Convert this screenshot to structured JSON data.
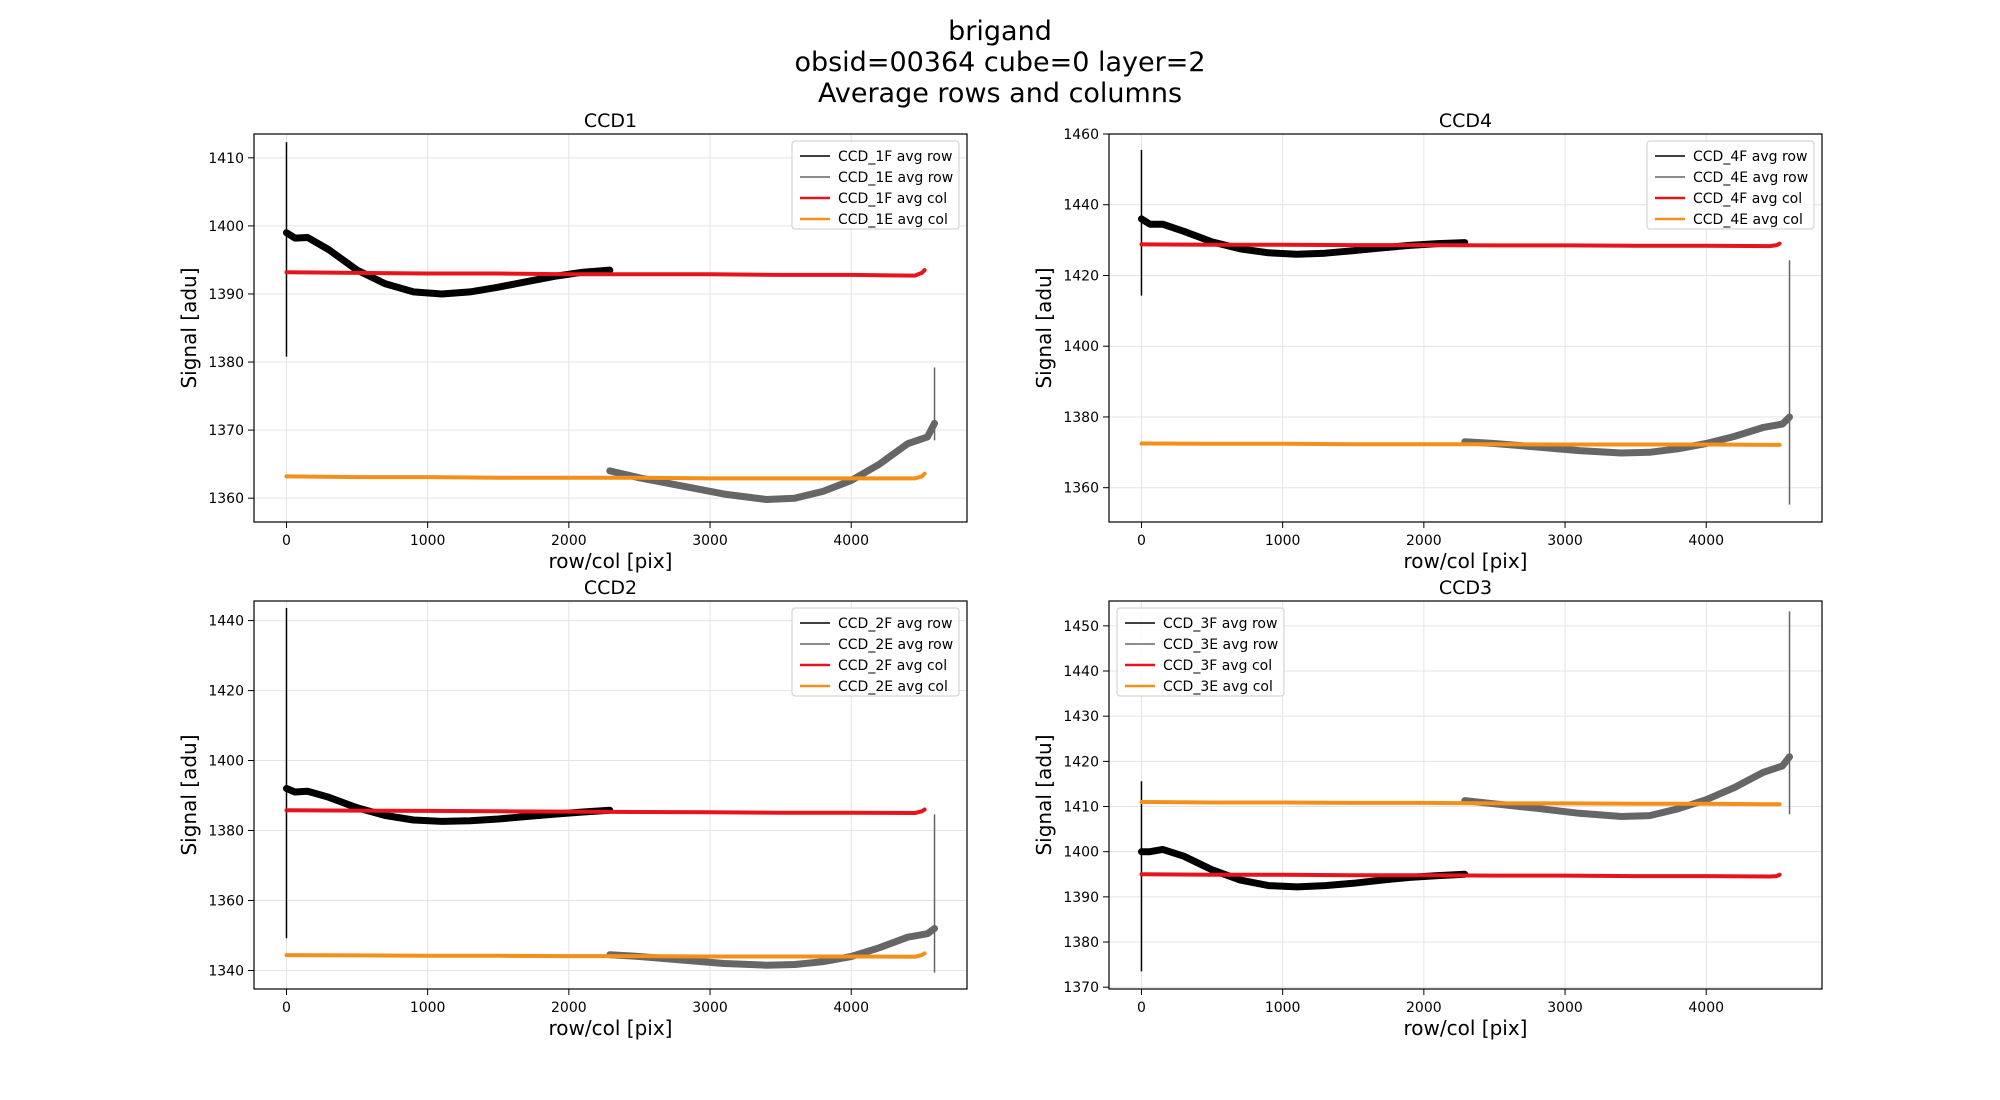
{
  "figure": {
    "title_lines": [
      "brigand",
      "obsid=00364   cube=0  layer=2",
      "Average rows and columns"
    ]
  },
  "colors": {
    "F_row": "#000000",
    "E_row": "#666666",
    "F_col": "#e8141b",
    "E_col": "#f39019"
  },
  "chart_data": [
    {
      "type": "line",
      "title": "CCD1",
      "xlabel": "row/col [pix]",
      "ylabel": "Signal [adu]",
      "xlim": [
        -230,
        4820
      ],
      "ylim": [
        1356.5,
        1413.5
      ],
      "xticks": [
        0,
        1000,
        2000,
        3000,
        4000
      ],
      "yticks": [
        1360,
        1370,
        1380,
        1390,
        1400,
        1410
      ],
      "grid": true,
      "legend_position": "upper right",
      "series": [
        {
          "name": "CCD_1F avg row",
          "kind": "row",
          "x": [
            0,
            60,
            150,
            300,
            500,
            700,
            900,
            1100,
            1300,
            1500,
            1700,
            1900,
            2100,
            2290
          ],
          "y": [
            1399,
            1398.2,
            1398.3,
            1396.5,
            1393.5,
            1391.5,
            1390.3,
            1390,
            1390.3,
            1391,
            1391.8,
            1392.6,
            1393.2,
            1393.5
          ],
          "spikes": [
            {
              "x": 0,
              "ymin": 1380.8,
              "ymax": 1412.3
            }
          ]
        },
        {
          "name": "CCD_1E avg row",
          "kind": "row",
          "x": [
            2290,
            2500,
            2800,
            3100,
            3400,
            3600,
            3800,
            4000,
            4200,
            4400,
            4540,
            4590
          ],
          "y": [
            1364,
            1363,
            1361.8,
            1360.6,
            1359.8,
            1360,
            1361,
            1362.6,
            1365,
            1368,
            1369,
            1371
          ],
          "spikes": [
            {
              "x": 4590,
              "ymin": 1368.5,
              "ymax": 1379.2
            }
          ]
        },
        {
          "name": "CCD_1F avg col",
          "kind": "col",
          "x": [
            0,
            500,
            1000,
            1500,
            2000,
            2500,
            3000,
            3500,
            4000,
            4450,
            4500,
            4520
          ],
          "y": [
            1393.2,
            1393.1,
            1393,
            1393,
            1392.9,
            1392.9,
            1392.9,
            1392.8,
            1392.8,
            1392.7,
            1393.1,
            1393.5
          ]
        },
        {
          "name": "CCD_1E avg col",
          "kind": "col",
          "x": [
            0,
            500,
            1000,
            1500,
            2000,
            2500,
            3000,
            3500,
            4000,
            4450,
            4500,
            4520
          ],
          "y": [
            1363.2,
            1363.1,
            1363.1,
            1363,
            1363,
            1363,
            1362.9,
            1362.9,
            1362.9,
            1362.9,
            1363.2,
            1363.6
          ]
        }
      ]
    },
    {
      "type": "line",
      "title": "CCD4",
      "xlabel": "row/col [pix]",
      "ylabel": "Signal [adu]",
      "xlim": [
        -230,
        4820
      ],
      "ylim": [
        1350.3,
        1460
      ],
      "xticks": [
        0,
        1000,
        2000,
        3000,
        4000
      ],
      "yticks": [
        1360,
        1380,
        1400,
        1420,
        1440,
        1460
      ],
      "grid": true,
      "legend_position": "upper right",
      "series": [
        {
          "name": "CCD_4F avg row",
          "kind": "row",
          "x": [
            0,
            60,
            150,
            300,
            500,
            700,
            900,
            1100,
            1300,
            1500,
            1700,
            1900,
            2100,
            2290
          ],
          "y": [
            1436,
            1434.5,
            1434.5,
            1432.5,
            1429.5,
            1427.5,
            1426.4,
            1426,
            1426.3,
            1427,
            1427.8,
            1428.5,
            1429,
            1429.3
          ],
          "spikes": [
            {
              "x": 0,
              "ymin": 1414.3,
              "ymax": 1455.5
            }
          ]
        },
        {
          "name": "CCD_4E avg row",
          "kind": "row",
          "x": [
            2290,
            2500,
            2800,
            3100,
            3400,
            3600,
            3800,
            4000,
            4200,
            4400,
            4540,
            4590
          ],
          "y": [
            1373,
            1372.5,
            1371.5,
            1370.5,
            1369.8,
            1370,
            1371,
            1372.5,
            1374.5,
            1377,
            1378,
            1380
          ],
          "spikes": [
            {
              "x": 4590,
              "ymin": 1355.2,
              "ymax": 1424.3
            }
          ]
        },
        {
          "name": "CCD_4F avg col",
          "kind": "col",
          "x": [
            0,
            500,
            1000,
            1500,
            2000,
            2500,
            3000,
            3500,
            4000,
            4450,
            4500,
            4520
          ],
          "y": [
            1428.8,
            1428.7,
            1428.7,
            1428.6,
            1428.6,
            1428.5,
            1428.5,
            1428.4,
            1428.4,
            1428.3,
            1428.6,
            1429
          ]
        },
        {
          "name": "CCD_4E avg col",
          "kind": "col",
          "x": [
            0,
            500,
            1000,
            1500,
            2000,
            2500,
            3000,
            3500,
            4000,
            4450,
            4500,
            4520
          ],
          "y": [
            1372.5,
            1372.4,
            1372.4,
            1372.3,
            1372.3,
            1372.3,
            1372.2,
            1372.2,
            1372.2,
            1372.1,
            1372.1,
            1372.1
          ]
        }
      ]
    },
    {
      "type": "line",
      "title": "CCD2",
      "xlabel": "row/col [pix]",
      "ylabel": "Signal [adu]",
      "xlim": [
        -230,
        4820
      ],
      "ylim": [
        1334.7,
        1445.6
      ],
      "xticks": [
        0,
        1000,
        2000,
        3000,
        4000
      ],
      "yticks": [
        1340,
        1360,
        1380,
        1400,
        1420,
        1440
      ],
      "grid": true,
      "legend_position": "upper right",
      "series": [
        {
          "name": "CCD_2F avg row",
          "kind": "row",
          "x": [
            0,
            60,
            150,
            300,
            500,
            700,
            900,
            1100,
            1300,
            1500,
            1700,
            1900,
            2100,
            2290
          ],
          "y": [
            1392,
            1391,
            1391.2,
            1389.5,
            1386.5,
            1384.3,
            1383,
            1382.6,
            1382.8,
            1383.3,
            1384,
            1384.7,
            1385.3,
            1385.8
          ],
          "spikes": [
            {
              "x": 0,
              "ymin": 1349.2,
              "ymax": 1443.6
            }
          ]
        },
        {
          "name": "CCD_2E avg row",
          "kind": "row",
          "x": [
            2290,
            2500,
            2800,
            3100,
            3400,
            3600,
            3800,
            4000,
            4200,
            4400,
            4540,
            4590
          ],
          "y": [
            1344.5,
            1344,
            1343,
            1342,
            1341.5,
            1341.7,
            1342.5,
            1344,
            1346.5,
            1349.5,
            1350.5,
            1352
          ],
          "spikes": [
            {
              "x": 4590,
              "ymin": 1339.4,
              "ymax": 1384.6
            }
          ]
        },
        {
          "name": "CCD_2F avg col",
          "kind": "col",
          "x": [
            0,
            500,
            1000,
            1500,
            2000,
            2500,
            3000,
            3500,
            4000,
            4450,
            4500,
            4520
          ],
          "y": [
            1385.8,
            1385.7,
            1385.6,
            1385.5,
            1385.4,
            1385.3,
            1385.2,
            1385.1,
            1385.1,
            1385,
            1385.5,
            1386
          ]
        },
        {
          "name": "CCD_2E avg col",
          "kind": "col",
          "x": [
            0,
            500,
            1000,
            1500,
            2000,
            2500,
            3000,
            3500,
            4000,
            4450,
            4500,
            4520
          ],
          "y": [
            1344.4,
            1344.3,
            1344.2,
            1344.2,
            1344.1,
            1344.1,
            1344,
            1344,
            1344,
            1343.9,
            1344.4,
            1344.9
          ]
        }
      ]
    },
    {
      "type": "line",
      "title": "CCD3",
      "xlabel": "row/col [pix]",
      "ylabel": "Signal [adu]",
      "xlim": [
        -230,
        4820
      ],
      "ylim": [
        1369.6,
        1455.5
      ],
      "xticks": [
        0,
        1000,
        2000,
        3000,
        4000
      ],
      "yticks": [
        1370,
        1380,
        1390,
        1400,
        1410,
        1420,
        1430,
        1440,
        1450
      ],
      "grid": true,
      "legend_position": "upper left",
      "series": [
        {
          "name": "CCD_3F avg row",
          "kind": "row",
          "x": [
            0,
            60,
            150,
            300,
            500,
            700,
            900,
            1100,
            1300,
            1500,
            1700,
            1900,
            2100,
            2290
          ],
          "y": [
            1400,
            1400,
            1400.5,
            1399,
            1396,
            1393.7,
            1392.5,
            1392.2,
            1392.5,
            1393,
            1393.7,
            1394.3,
            1394.7,
            1395
          ],
          "spikes": [
            {
              "x": 0,
              "ymin": 1373.5,
              "ymax": 1415.6
            }
          ]
        },
        {
          "name": "CCD_3E avg row",
          "kind": "row",
          "x": [
            2290,
            2500,
            2800,
            3100,
            3400,
            3600,
            3800,
            4000,
            4200,
            4400,
            4540,
            4590
          ],
          "y": [
            1411.3,
            1410.6,
            1409.6,
            1408.5,
            1407.8,
            1408,
            1409.5,
            1411.5,
            1414.2,
            1417.5,
            1419,
            1421
          ],
          "spikes": [
            {
              "x": 4590,
              "ymin": 1408.3,
              "ymax": 1453.2
            }
          ]
        },
        {
          "name": "CCD_3F avg col",
          "kind": "col",
          "x": [
            0,
            500,
            1000,
            1500,
            2000,
            2500,
            3000,
            3500,
            4000,
            4450,
            4500,
            4520
          ],
          "y": [
            1395,
            1394.9,
            1394.9,
            1394.8,
            1394.8,
            1394.7,
            1394.7,
            1394.6,
            1394.6,
            1394.5,
            1394.6,
            1394.9
          ]
        },
        {
          "name": "CCD_3E avg col",
          "kind": "col",
          "x": [
            0,
            500,
            1000,
            1500,
            2000,
            2500,
            3000,
            3500,
            4000,
            4450,
            4500,
            4520
          ],
          "y": [
            1411,
            1410.9,
            1410.9,
            1410.8,
            1410.8,
            1410.7,
            1410.7,
            1410.6,
            1410.6,
            1410.5,
            1410.5,
            1410.5
          ]
        }
      ]
    }
  ]
}
